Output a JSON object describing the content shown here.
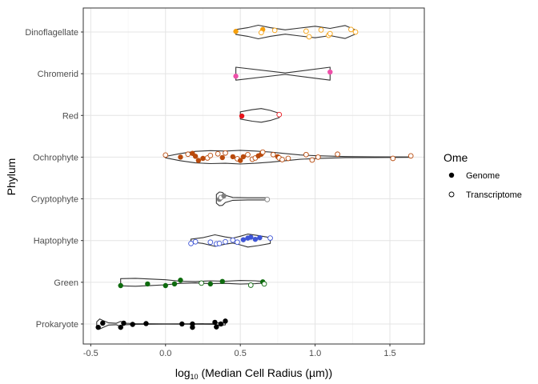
{
  "chart_data": {
    "type": "scatter",
    "subtype": "violin-with-jittered-points",
    "orientation": "horizontal",
    "title": "",
    "xlabel_prefix": "log",
    "xlabel_sub": "10",
    "xlabel_rest": " (Median Cell Radius (µm))",
    "ylabel": "Phylum",
    "xlim": [
      -0.55,
      1.73
    ],
    "x_ticks": [
      -0.5,
      0.0,
      0.5,
      1.0,
      1.5
    ],
    "x_tick_labels": [
      "-0.5",
      "0.0",
      "0.5",
      "1.0",
      "1.5"
    ],
    "grid": true,
    "legend_position": "right",
    "legend": {
      "title": "Ome",
      "entries": [
        {
          "label": "Genome",
          "marker": "filled"
        },
        {
          "label": "Transcriptome",
          "marker": "open"
        }
      ]
    },
    "categories": [
      "Dinoflagellate",
      "Chromerid",
      "Red",
      "Ochrophyte",
      "Cryptophyte",
      "Haptophyte",
      "Green",
      "Prokaryote"
    ],
    "series": [
      {
        "category": "Dinoflagellate",
        "color": "#f5a00e",
        "range": [
          0.47,
          1.28
        ],
        "width_profile": [
          [
            0.47,
            0.35
          ],
          [
            0.55,
            0.6
          ],
          [
            0.62,
            0.95
          ],
          [
            0.7,
            0.6
          ],
          [
            0.8,
            0.3
          ],
          [
            0.9,
            0.55
          ],
          [
            1.0,
            0.8
          ],
          [
            1.1,
            0.5
          ],
          [
            1.2,
            0.9
          ],
          [
            1.28,
            0.2
          ]
        ],
        "points": [
          {
            "x": 0.47,
            "dy": -0.03,
            "ome": "Genome"
          },
          {
            "x": 0.65,
            "dy": -0.12,
            "ome": "Genome"
          },
          {
            "x": 0.64,
            "dy": 0.03,
            "ome": "Transcriptome"
          },
          {
            "x": 0.73,
            "dy": -0.08,
            "ome": "Transcriptome"
          },
          {
            "x": 0.94,
            "dy": -0.04,
            "ome": "Transcriptome"
          },
          {
            "x": 0.96,
            "dy": 0.23,
            "ome": "Transcriptome"
          },
          {
            "x": 1.04,
            "dy": -0.1,
            "ome": "Transcriptome"
          },
          {
            "x": 1.09,
            "dy": 0.16,
            "ome": "Transcriptome"
          },
          {
            "x": 1.1,
            "dy": 0.08,
            "ome": "Transcriptome"
          },
          {
            "x": 1.24,
            "dy": -0.12,
            "ome": "Transcriptome"
          },
          {
            "x": 1.27,
            "dy": 0.0,
            "ome": "Transcriptome"
          }
        ]
      },
      {
        "category": "Chromerid",
        "color": "#ee4fa9",
        "range": [
          0.47,
          1.1
        ],
        "width_profile": [
          [
            0.47,
            0.9
          ],
          [
            0.8,
            0.1
          ],
          [
            1.1,
            0.9
          ]
        ],
        "points": [
          {
            "x": 0.47,
            "dy": 0.12,
            "ome": "Genome"
          },
          {
            "x": 1.1,
            "dy": -0.08,
            "ome": "Genome"
          }
        ]
      },
      {
        "category": "Red",
        "color": "#e8141c",
        "range": [
          0.5,
          0.76
        ],
        "width_profile": [
          [
            0.5,
            0.5
          ],
          [
            0.58,
            0.8
          ],
          [
            0.64,
            0.95
          ],
          [
            0.7,
            0.7
          ],
          [
            0.76,
            0.3
          ]
        ],
        "points": [
          {
            "x": 0.51,
            "dy": 0.03,
            "ome": "Genome"
          },
          {
            "x": 0.76,
            "dy": -0.04,
            "ome": "Transcriptome"
          }
        ]
      },
      {
        "category": "Ochrophyte",
        "color": "#b94a0c",
        "range": [
          0.0,
          1.65
        ],
        "width_profile": [
          [
            0.0,
            0.1
          ],
          [
            0.1,
            0.5
          ],
          [
            0.2,
            0.8
          ],
          [
            0.3,
            0.9
          ],
          [
            0.4,
            0.85
          ],
          [
            0.5,
            0.95
          ],
          [
            0.6,
            0.85
          ],
          [
            0.7,
            0.7
          ],
          [
            0.8,
            0.5
          ],
          [
            0.9,
            0.3
          ],
          [
            1.0,
            0.2
          ],
          [
            1.2,
            0.08
          ],
          [
            1.4,
            0.05
          ],
          [
            1.65,
            0.02
          ]
        ],
        "points": [
          {
            "x": 0.0,
            "dy": -0.1,
            "ome": "Transcriptome"
          },
          {
            "x": 0.1,
            "dy": 0.0,
            "ome": "Genome"
          },
          {
            "x": 0.15,
            "dy": -0.14,
            "ome": "Transcriptome"
          },
          {
            "x": 0.18,
            "dy": -0.18,
            "ome": "Genome"
          },
          {
            "x": 0.2,
            "dy": -0.04,
            "ome": "Genome"
          },
          {
            "x": 0.22,
            "dy": 0.16,
            "ome": "Genome"
          },
          {
            "x": 0.25,
            "dy": 0.06,
            "ome": "Genome"
          },
          {
            "x": 0.28,
            "dy": 0.04,
            "ome": "Transcriptome"
          },
          {
            "x": 0.3,
            "dy": -0.08,
            "ome": "Transcriptome"
          },
          {
            "x": 0.35,
            "dy": -0.16,
            "ome": "Transcriptome"
          },
          {
            "x": 0.38,
            "dy": 0.02,
            "ome": "Genome"
          },
          {
            "x": 0.4,
            "dy": -0.2,
            "ome": "Transcriptome"
          },
          {
            "x": 0.45,
            "dy": -0.02,
            "ome": "Genome"
          },
          {
            "x": 0.48,
            "dy": 0.08,
            "ome": "Transcriptome"
          },
          {
            "x": 0.5,
            "dy": 0.16,
            "ome": "Genome"
          },
          {
            "x": 0.52,
            "dy": -0.02,
            "ome": "Genome"
          },
          {
            "x": 0.55,
            "dy": -0.12,
            "ome": "Transcriptome"
          },
          {
            "x": 0.58,
            "dy": 0.1,
            "ome": "Transcriptome"
          },
          {
            "x": 0.6,
            "dy": 0.04,
            "ome": "Transcriptome"
          },
          {
            "x": 0.62,
            "dy": -0.06,
            "ome": "Genome"
          },
          {
            "x": 0.64,
            "dy": -0.14,
            "ome": "Genome"
          },
          {
            "x": 0.65,
            "dy": -0.24,
            "ome": "Transcriptome"
          },
          {
            "x": 0.72,
            "dy": -0.12,
            "ome": "Transcriptome"
          },
          {
            "x": 0.75,
            "dy": -0.02,
            "ome": "Genome"
          },
          {
            "x": 0.76,
            "dy": 0.04,
            "ome": "Transcriptome"
          },
          {
            "x": 0.78,
            "dy": 0.12,
            "ome": "Transcriptome"
          },
          {
            "x": 0.82,
            "dy": 0.06,
            "ome": "Transcriptome"
          },
          {
            "x": 0.94,
            "dy": -0.12,
            "ome": "Transcriptome"
          },
          {
            "x": 0.98,
            "dy": 0.14,
            "ome": "Transcriptome"
          },
          {
            "x": 1.02,
            "dy": 0.0,
            "ome": "Transcriptome"
          },
          {
            "x": 1.15,
            "dy": -0.14,
            "ome": "Transcriptome"
          },
          {
            "x": 1.52,
            "dy": 0.06,
            "ome": "Transcriptome"
          },
          {
            "x": 1.64,
            "dy": -0.06,
            "ome": "Transcriptome"
          }
        ]
      },
      {
        "category": "Cryptophyte",
        "color": "#7f7f7f",
        "range": [
          0.34,
          0.68
        ],
        "width_profile": [
          [
            0.34,
            0.6
          ],
          [
            0.36,
            0.95
          ],
          [
            0.38,
            0.9
          ],
          [
            0.4,
            0.5
          ],
          [
            0.45,
            0.2
          ],
          [
            0.55,
            0.15
          ],
          [
            0.68,
            0.15
          ]
        ],
        "points": [
          {
            "x": 0.36,
            "dy": 0.02,
            "ome": "Genome"
          },
          {
            "x": 0.37,
            "dy": -0.06,
            "ome": "Transcriptome"
          },
          {
            "x": 0.39,
            "dy": -0.14,
            "ome": "Genome"
          },
          {
            "x": 0.68,
            "dy": 0.03,
            "ome": "Transcriptome"
          }
        ]
      },
      {
        "category": "Haptophyte",
        "color": "#3e55d6",
        "range": [
          0.17,
          0.7
        ],
        "width_profile": [
          [
            0.17,
            0.2
          ],
          [
            0.25,
            0.4
          ],
          [
            0.33,
            0.8
          ],
          [
            0.4,
            0.5
          ],
          [
            0.45,
            0.35
          ],
          [
            0.5,
            0.6
          ],
          [
            0.55,
            0.9
          ],
          [
            0.62,
            0.7
          ],
          [
            0.7,
            0.4
          ]
        ],
        "points": [
          {
            "x": 0.17,
            "dy": 0.14,
            "ome": "Transcriptome"
          },
          {
            "x": 0.2,
            "dy": 0.06,
            "ome": "Transcriptome"
          },
          {
            "x": 0.3,
            "dy": 0.08,
            "ome": "Transcriptome"
          },
          {
            "x": 0.34,
            "dy": 0.16,
            "ome": "Transcriptome"
          },
          {
            "x": 0.36,
            "dy": 0.14,
            "ome": "Transcriptome"
          },
          {
            "x": 0.4,
            "dy": 0.06,
            "ome": "Transcriptome"
          },
          {
            "x": 0.45,
            "dy": -0.02,
            "ome": "Transcriptome"
          },
          {
            "x": 0.48,
            "dy": 0.08,
            "ome": "Transcriptome"
          },
          {
            "x": 0.52,
            "dy": -0.04,
            "ome": "Genome"
          },
          {
            "x": 0.55,
            "dy": -0.12,
            "ome": "Genome"
          },
          {
            "x": 0.57,
            "dy": -0.16,
            "ome": "Genome"
          },
          {
            "x": 0.6,
            "dy": -0.06,
            "ome": "Genome"
          },
          {
            "x": 0.63,
            "dy": -0.14,
            "ome": "Genome"
          },
          {
            "x": 0.7,
            "dy": -0.12,
            "ome": "Transcriptome"
          }
        ]
      },
      {
        "category": "Green",
        "color": "#0e6b0e",
        "range": [
          -0.3,
          0.66
        ],
        "width_profile": [
          [
            -0.3,
            0.5
          ],
          [
            -0.2,
            0.55
          ],
          [
            -0.1,
            0.45
          ],
          [
            0.0,
            0.35
          ],
          [
            0.1,
            0.15
          ],
          [
            0.2,
            0.1
          ],
          [
            0.3,
            0.2
          ],
          [
            0.4,
            0.15
          ],
          [
            0.5,
            0.25
          ],
          [
            0.6,
            0.2
          ],
          [
            0.66,
            0.1
          ]
        ],
        "points": [
          {
            "x": -0.3,
            "dy": 0.16,
            "ome": "Genome"
          },
          {
            "x": -0.12,
            "dy": 0.08,
            "ome": "Genome"
          },
          {
            "x": 0.0,
            "dy": 0.16,
            "ome": "Genome"
          },
          {
            "x": 0.06,
            "dy": 0.08,
            "ome": "Genome"
          },
          {
            "x": 0.1,
            "dy": -0.1,
            "ome": "Genome"
          },
          {
            "x": 0.24,
            "dy": 0.04,
            "ome": "Transcriptome"
          },
          {
            "x": 0.3,
            "dy": 0.08,
            "ome": "Genome"
          },
          {
            "x": 0.38,
            "dy": -0.04,
            "ome": "Genome"
          },
          {
            "x": 0.57,
            "dy": 0.14,
            "ome": "Transcriptome"
          },
          {
            "x": 0.65,
            "dy": -0.02,
            "ome": "Genome"
          },
          {
            "x": 0.66,
            "dy": 0.08,
            "ome": "Transcriptome"
          }
        ]
      },
      {
        "category": "Prokaryote",
        "color": "#000000",
        "range": [
          -0.46,
          0.4
        ],
        "width_profile": [
          [
            -0.46,
            0.3
          ],
          [
            -0.44,
            0.7
          ],
          [
            -0.42,
            0.5
          ],
          [
            -0.38,
            0.15
          ],
          [
            -0.33,
            0.1
          ],
          [
            -0.3,
            0.35
          ],
          [
            -0.27,
            0.1
          ],
          [
            -0.2,
            0.05
          ],
          [
            0.0,
            0.02
          ],
          [
            0.2,
            0.03
          ],
          [
            0.33,
            0.05
          ],
          [
            0.36,
            0.2
          ],
          [
            0.4,
            0.12
          ]
        ],
        "points": [
          {
            "x": -0.45,
            "dy": 0.16,
            "ome": "Genome"
          },
          {
            "x": -0.42,
            "dy": -0.04,
            "ome": "Genome"
          },
          {
            "x": -0.3,
            "dy": 0.16,
            "ome": "Genome"
          },
          {
            "x": -0.28,
            "dy": -0.04,
            "ome": "Genome"
          },
          {
            "x": -0.22,
            "dy": 0.02,
            "ome": "Genome"
          },
          {
            "x": -0.13,
            "dy": -0.02,
            "ome": "Genome"
          },
          {
            "x": 0.11,
            "dy": 0.0,
            "ome": "Genome"
          },
          {
            "x": 0.18,
            "dy": 0.16,
            "ome": "Genome"
          },
          {
            "x": 0.18,
            "dy": 0.0,
            "ome": "Genome"
          },
          {
            "x": 0.33,
            "dy": -0.08,
            "ome": "Genome"
          },
          {
            "x": 0.34,
            "dy": 0.14,
            "ome": "Genome"
          },
          {
            "x": 0.37,
            "dy": 0.0,
            "ome": "Genome"
          },
          {
            "x": 0.4,
            "dy": -0.14,
            "ome": "Genome"
          }
        ]
      }
    ]
  }
}
